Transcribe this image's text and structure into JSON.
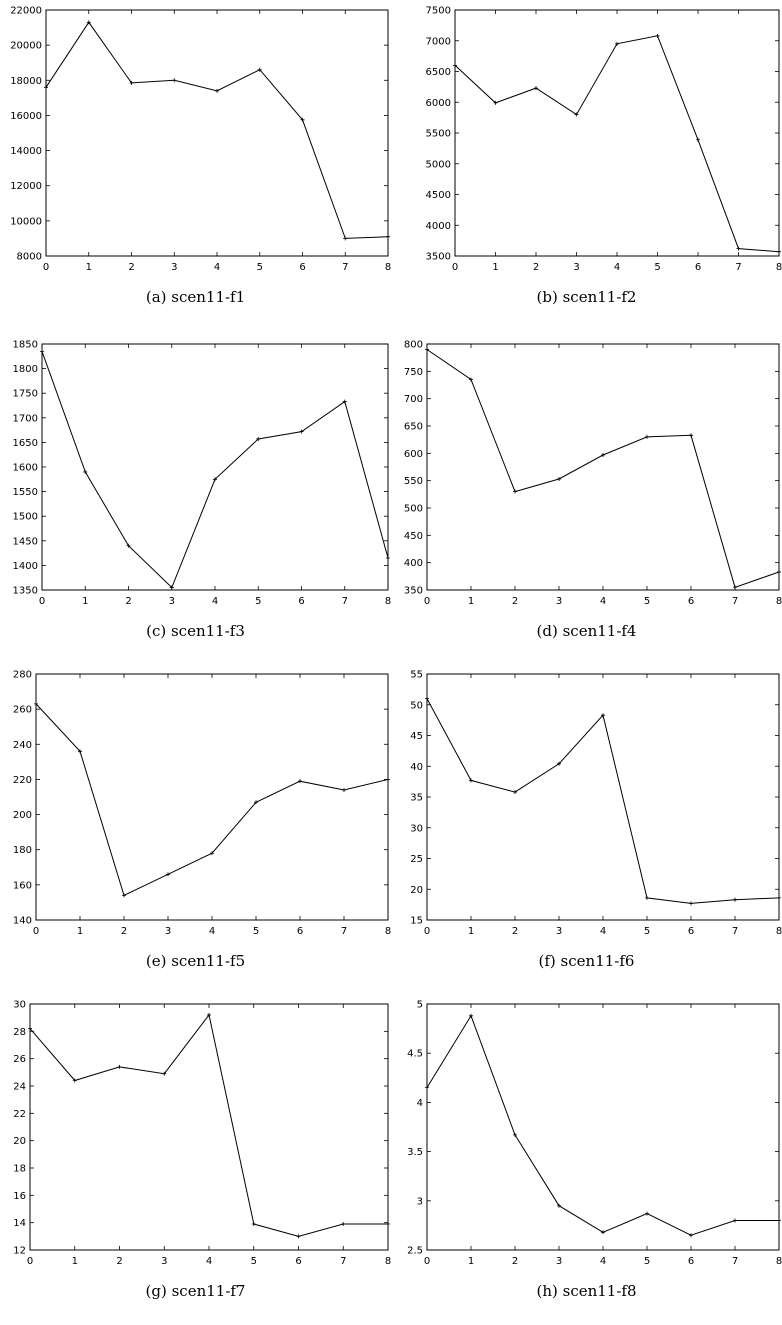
{
  "chart_data": [
    {
      "type": "line",
      "caption": "(a) scen11-f1",
      "x": [
        0,
        1,
        2,
        3,
        4,
        5,
        6,
        7,
        8
      ],
      "xticks": [
        "0",
        "1",
        "2",
        "3",
        "4",
        "5",
        "6",
        "7",
        "8"
      ],
      "yticks": [
        "8000",
        "10000",
        "12000",
        "14000",
        "16000",
        "18000",
        "20000",
        "22000"
      ],
      "ylim": [
        8000,
        22000
      ],
      "series": [
        {
          "values": [
            17600,
            21300,
            17850,
            18000,
            17400,
            18600,
            15750,
            9000,
            9100
          ]
        }
      ]
    },
    {
      "type": "line",
      "caption": "(b) scen11-f2",
      "x": [
        0,
        1,
        2,
        3,
        4,
        5,
        6,
        7,
        8
      ],
      "xticks": [
        "0",
        "1",
        "2",
        "3",
        "4",
        "5",
        "6",
        "7",
        "8"
      ],
      "yticks": [
        "3500",
        "4000",
        "4500",
        "5000",
        "5500",
        "6000",
        "6500",
        "7000",
        "7500"
      ],
      "ylim": [
        3500,
        7500
      ],
      "series": [
        {
          "values": [
            6600,
            5990,
            6230,
            5800,
            6950,
            7080,
            5390,
            3620,
            3570
          ]
        }
      ]
    },
    {
      "type": "line",
      "caption": "(c) scen11-f3",
      "x": [
        0,
        1,
        2,
        3,
        4,
        5,
        6,
        7,
        8
      ],
      "xticks": [
        "0",
        "1",
        "2",
        "3",
        "4",
        "5",
        "6",
        "7",
        "8"
      ],
      "yticks": [
        "1350",
        "1400",
        "1450",
        "1500",
        "1550",
        "1600",
        "1650",
        "1700",
        "1750",
        "1800",
        "1850"
      ],
      "ylim": [
        1350,
        1850
      ],
      "series": [
        {
          "values": [
            1835,
            1590,
            1440,
            1355,
            1575,
            1657,
            1672,
            1733,
            1415
          ]
        }
      ]
    },
    {
      "type": "line",
      "caption": "(d) scen11-f4",
      "x": [
        0,
        1,
        2,
        3,
        4,
        5,
        6,
        7,
        8
      ],
      "xticks": [
        "0",
        "1",
        "2",
        "3",
        "4",
        "5",
        "6",
        "7",
        "8"
      ],
      "yticks": [
        "350",
        "400",
        "450",
        "500",
        "550",
        "600",
        "650",
        "700",
        "750",
        "800"
      ],
      "ylim": [
        350,
        800
      ],
      "series": [
        {
          "values": [
            790,
            735,
            530,
            553,
            597,
            630,
            633,
            355,
            383
          ]
        }
      ]
    },
    {
      "type": "line",
      "caption": "(e) scen11-f5",
      "x": [
        0,
        1,
        2,
        3,
        4,
        5,
        6,
        7,
        8
      ],
      "xticks": [
        "0",
        "1",
        "2",
        "3",
        "4",
        "5",
        "6",
        "7",
        "8"
      ],
      "yticks": [
        "140",
        "160",
        "180",
        "200",
        "220",
        "240",
        "260",
        "280"
      ],
      "ylim": [
        140,
        280
      ],
      "series": [
        {
          "values": [
            263,
            236,
            154,
            166,
            178,
            207,
            219,
            214,
            220
          ]
        }
      ]
    },
    {
      "type": "line",
      "caption": "(f) scen11-f6",
      "x": [
        0,
        1,
        2,
        3,
        4,
        5,
        6,
        7,
        8
      ],
      "xticks": [
        "0",
        "1",
        "2",
        "3",
        "4",
        "5",
        "6",
        "7",
        "8"
      ],
      "yticks": [
        "15",
        "20",
        "25",
        "30",
        "35",
        "40",
        "45",
        "50",
        "55"
      ],
      "ylim": [
        15,
        55
      ],
      "series": [
        {
          "values": [
            51,
            37.7,
            35.8,
            40.4,
            48.3,
            18.6,
            17.7,
            18.3,
            18.6
          ]
        }
      ]
    },
    {
      "type": "line",
      "caption": "(g) scen11-f7",
      "x": [
        0,
        1,
        2,
        3,
        4,
        5,
        6,
        7,
        8
      ],
      "xticks": [
        "0",
        "1",
        "2",
        "3",
        "4",
        "5",
        "6",
        "7",
        "8"
      ],
      "yticks": [
        "12",
        "14",
        "16",
        "18",
        "20",
        "22",
        "24",
        "26",
        "28",
        "30"
      ],
      "ylim": [
        12,
        30
      ],
      "series": [
        {
          "values": [
            28.2,
            24.4,
            25.4,
            24.9,
            29.2,
            13.9,
            13.0,
            13.9,
            13.9
          ]
        }
      ]
    },
    {
      "type": "line",
      "caption": "(h) scen11-f8",
      "x": [
        0,
        1,
        2,
        3,
        4,
        5,
        6,
        7,
        8
      ],
      "xticks": [
        "0",
        "1",
        "2",
        "3",
        "4",
        "5",
        "6",
        "7",
        "8"
      ],
      "yticks": [
        "2.5",
        "3",
        "3.5",
        "4",
        "4.5",
        "5"
      ],
      "ylim": [
        2.5,
        5
      ],
      "series": [
        {
          "values": [
            4.15,
            4.88,
            3.67,
            2.95,
            2.68,
            2.87,
            2.65,
            2.8,
            2.8
          ]
        }
      ]
    }
  ]
}
